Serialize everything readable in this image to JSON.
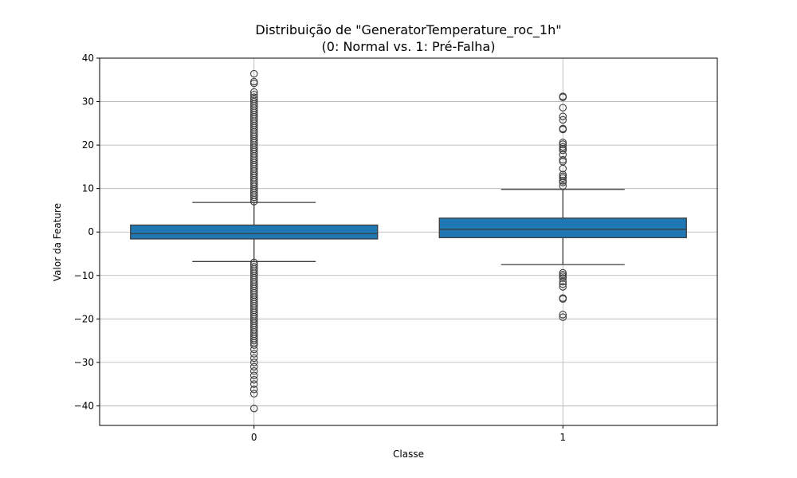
{
  "chart_data": {
    "type": "box",
    "title_line1": "Distribuição de \"GeneratorTemperature_roc_1h\"",
    "title_line2": "(0: Normal vs. 1: Pré-Falha)",
    "xlabel": "Classe",
    "ylabel": "Valor da Feature",
    "categories": [
      "0",
      "1"
    ],
    "ylim": [
      -44.5,
      40
    ],
    "yticks": [
      40,
      30,
      20,
      10,
      0,
      -10,
      -20,
      -30,
      -40
    ],
    "ytick_labels": [
      "40",
      "30",
      "20",
      "10",
      "0",
      "−10",
      "−20",
      "−30",
      "−40"
    ],
    "grid": true,
    "box_color": "#1f77b4",
    "edge_color": "#3d3d3d",
    "boxes": [
      {
        "category": "0",
        "q1": -1.6,
        "median": -0.4,
        "q3": 1.6,
        "whisker_low": -6.8,
        "whisker_high": 6.8,
        "outliers": [
          36.4,
          34.6,
          34.2,
          32.2,
          31.6,
          31.0,
          30.5,
          30.0,
          29.5,
          29.0,
          28.5,
          28.0,
          27.5,
          27.0,
          26.5,
          26.0,
          25.5,
          25.0,
          24.5,
          24.0,
          23.5,
          23.0,
          22.5,
          22.0,
          21.5,
          21.0,
          20.5,
          20.0,
          19.5,
          19.0,
          18.5,
          18.0,
          17.5,
          17.0,
          16.5,
          16.0,
          15.5,
          15.0,
          14.5,
          14.0,
          13.5,
          13.0,
          12.5,
          12.0,
          11.5,
          11.0,
          10.5,
          10.0,
          9.5,
          9.0,
          8.5,
          8.0,
          7.5,
          7.0,
          -7.0,
          -7.5,
          -8.0,
          -8.5,
          -9.0,
          -9.5,
          -10.0,
          -10.5,
          -11.0,
          -11.5,
          -12.0,
          -12.5,
          -13.0,
          -13.5,
          -14.0,
          -14.5,
          -15.0,
          -15.5,
          -16.0,
          -16.5,
          -17.0,
          -17.5,
          -18.0,
          -18.5,
          -19.0,
          -19.5,
          -20.0,
          -20.5,
          -21.0,
          -21.5,
          -22.0,
          -22.5,
          -23.0,
          -23.5,
          -24.0,
          -24.5,
          -25.0,
          -25.5,
          -26.0,
          -27.0,
          -28.0,
          -29.0,
          -30.0,
          -31.0,
          -32.0,
          -33.0,
          -34.0,
          -35.0,
          -36.2,
          -37.2,
          -40.6
        ]
      },
      {
        "category": "1",
        "q1": -1.3,
        "median": 0.6,
        "q3": 3.2,
        "whisker_low": -7.5,
        "whisker_high": 9.8,
        "outliers": [
          31.2,
          31.0,
          28.6,
          26.6,
          25.8,
          23.8,
          23.6,
          20.6,
          20.2,
          19.6,
          19.2,
          18.8,
          17.8,
          16.6,
          16.2,
          14.6,
          13.2,
          12.8,
          12.4,
          11.8,
          11.4,
          10.6,
          -9.4,
          -9.8,
          -10.2,
          -10.6,
          -11.4,
          -12.0,
          -12.6,
          -15.2,
          -15.4,
          -19.0,
          -19.6
        ]
      }
    ]
  }
}
